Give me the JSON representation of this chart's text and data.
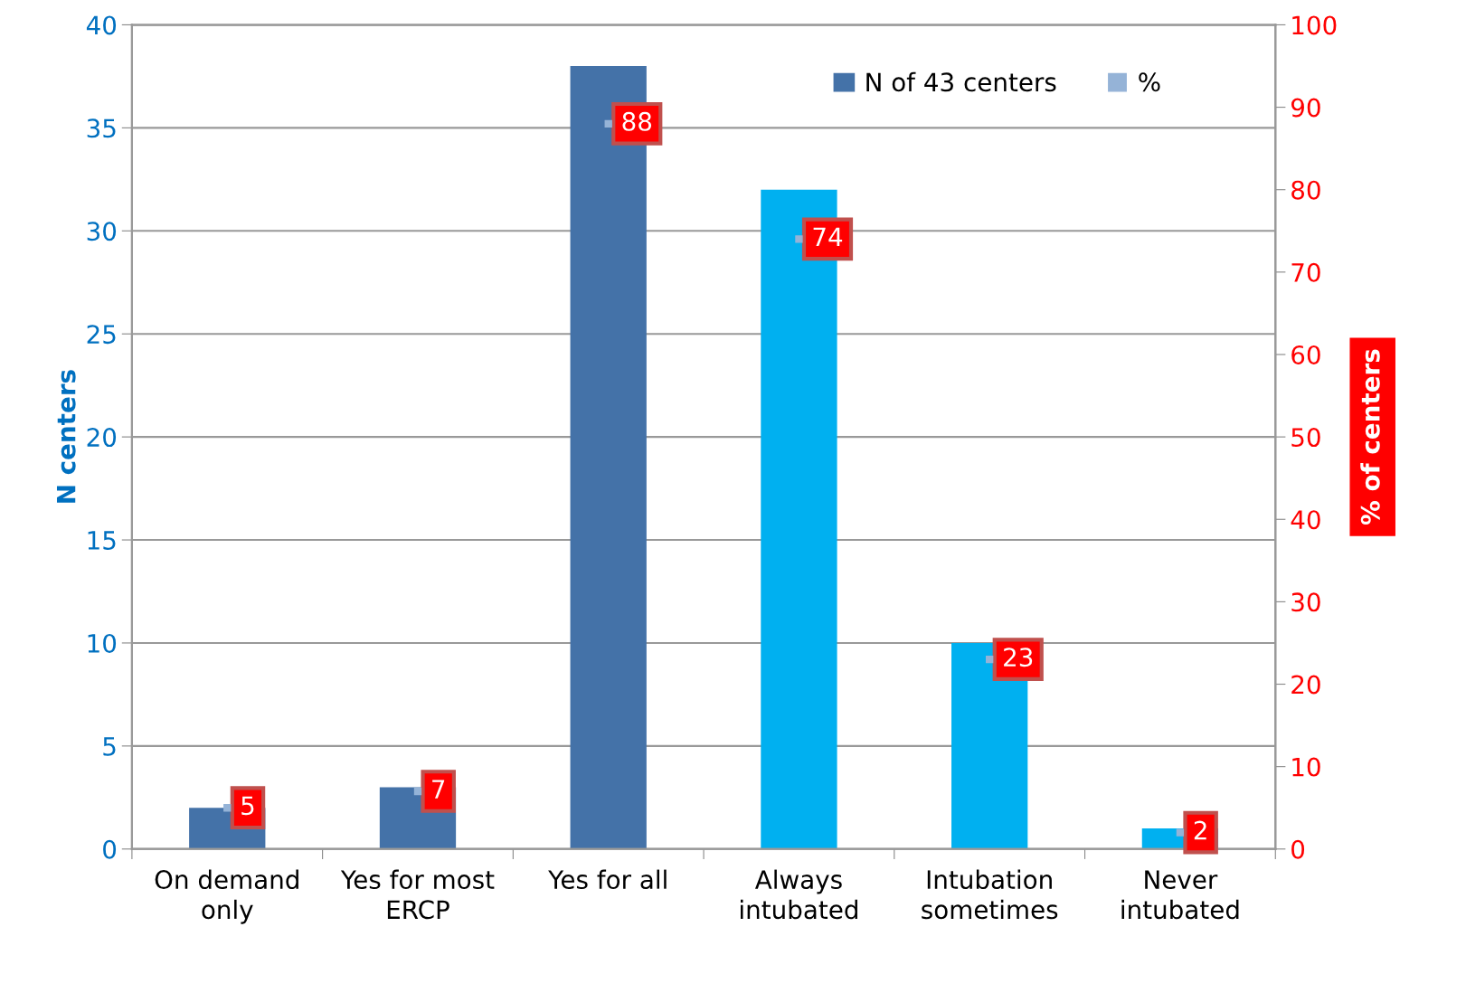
{
  "chart_data": {
    "type": "bar",
    "categories": [
      "On demand\nonly",
      "Yes for most\nERCP",
      "Yes for all",
      "Always\nintubated",
      "Intubation\nsometimes",
      "Never\nintubated"
    ],
    "ylabel": "N centers",
    "y2label": "% of centers",
    "ylim": [
      0,
      40
    ],
    "yticks": [
      0,
      5,
      10,
      15,
      20,
      25,
      30,
      35,
      40
    ],
    "y2lim": [
      0,
      100
    ],
    "y2ticks": [
      0,
      10,
      20,
      30,
      40,
      50,
      60,
      70,
      80,
      90,
      100
    ],
    "grid": "y",
    "legend": "top right",
    "series": [
      {
        "name": "N of 43 centers",
        "color": "#4472a8",
        "colors": [
          "#4472a8",
          "#4472a8",
          "#4472a8",
          "#00b0f0",
          "#00b0f0",
          "#00b0f0"
        ],
        "values": [
          2,
          3,
          38,
          32,
          10,
          1
        ]
      },
      {
        "name": "%",
        "type": "scatter",
        "axis": "y2",
        "marker": "square",
        "color": "#95b3d7",
        "values": [
          5,
          7,
          88,
          74,
          23,
          2
        ],
        "data_labels": true
      }
    ]
  }
}
